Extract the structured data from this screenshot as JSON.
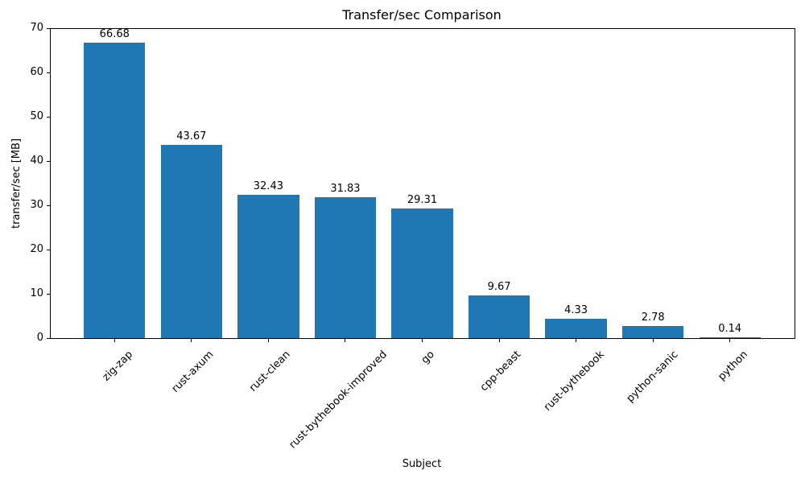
{
  "chart_data": {
    "type": "bar",
    "title": "Transfer/sec Comparison",
    "xlabel": "Subject",
    "ylabel": "transfer/sec [MB]",
    "categories": [
      "zig-zap",
      "rust-axum",
      "rust-clean",
      "rust-bythebook-improved",
      "go",
      "cpp-beast",
      "rust-bythebook",
      "python-sanic",
      "python"
    ],
    "values": [
      66.68,
      43.67,
      32.43,
      31.83,
      29.31,
      9.67,
      4.33,
      2.78,
      0.14
    ],
    "value_labels": [
      "66.68",
      "43.67",
      "32.43",
      "31.83",
      "29.31",
      "9.67",
      "4.33",
      "2.78",
      "0.14"
    ],
    "ylim": [
      0,
      70
    ],
    "yticks": [
      0,
      10,
      20,
      30,
      40,
      50,
      60,
      70
    ],
    "bar_color": "#1f77b4",
    "axis_color": "#000000",
    "grid": false,
    "legend_position": "none"
  }
}
